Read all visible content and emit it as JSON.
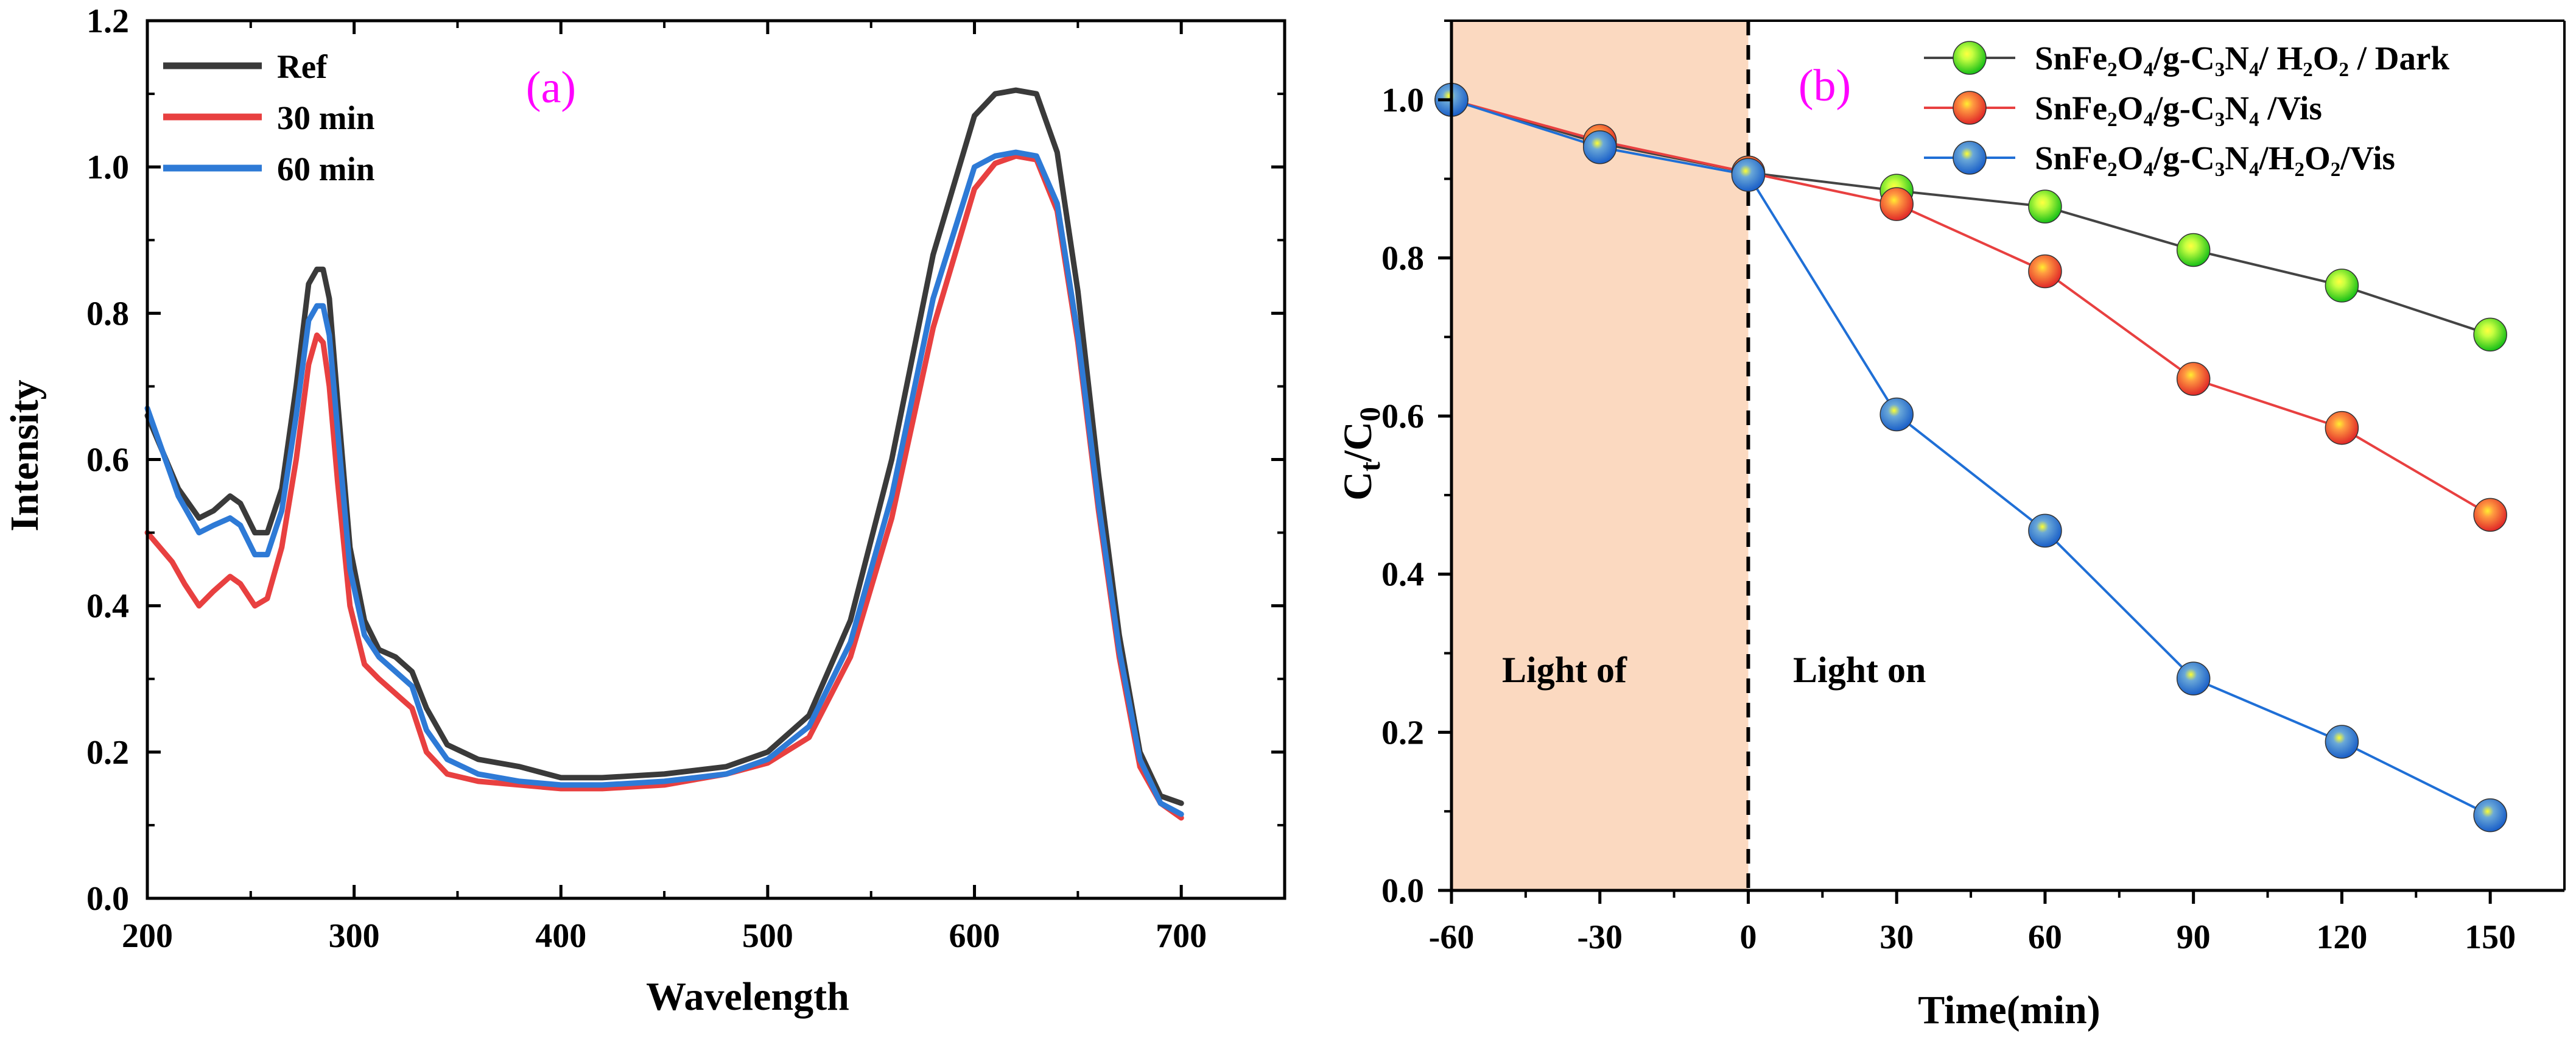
{
  "chart_data": [
    {
      "id": "a",
      "type": "line",
      "panel_label": "(a)",
      "xlabel": "Wavelength",
      "ylabel": "Intensity",
      "xlim": [
        200,
        750
      ],
      "ylim": [
        0.0,
        1.2
      ],
      "xticks": [
        "200",
        "300",
        "400",
        "500",
        "600",
        "700"
      ],
      "yticks": [
        "0.0",
        "0.2",
        "0.4",
        "0.6",
        "0.8",
        "1.0",
        "1.2"
      ],
      "legend_position": "top-left",
      "series": [
        {
          "name": "Ref",
          "color": "#3a3a3a",
          "x": [
            200,
            215,
            225,
            232,
            240,
            245,
            252,
            258,
            265,
            272,
            278,
            282,
            285,
            288,
            292,
            298,
            305,
            312,
            320,
            328,
            335,
            345,
            360,
            380,
            400,
            420,
            450,
            480,
            500,
            520,
            540,
            560,
            580,
            600,
            610,
            620,
            630,
            640,
            650,
            660,
            670,
            680,
            690,
            700
          ],
          "y": [
            0.66,
            0.56,
            0.52,
            0.53,
            0.55,
            0.54,
            0.5,
            0.5,
            0.56,
            0.7,
            0.84,
            0.86,
            0.86,
            0.82,
            0.68,
            0.48,
            0.38,
            0.34,
            0.33,
            0.31,
            0.26,
            0.21,
            0.19,
            0.18,
            0.165,
            0.165,
            0.17,
            0.18,
            0.2,
            0.25,
            0.38,
            0.6,
            0.88,
            1.07,
            1.1,
            1.105,
            1.1,
            1.02,
            0.83,
            0.58,
            0.36,
            0.2,
            0.14,
            0.13
          ]
        },
        {
          "name": "30 min",
          "color": "#e84040",
          "x": [
            200,
            212,
            218,
            225,
            232,
            240,
            245,
            252,
            258,
            265,
            272,
            278,
            282,
            285,
            288,
            292,
            298,
            305,
            312,
            320,
            328,
            335,
            345,
            360,
            380,
            400,
            420,
            450,
            480,
            500,
            520,
            540,
            560,
            580,
            600,
            610,
            620,
            630,
            640,
            650,
            660,
            670,
            680,
            690,
            700
          ],
          "y": [
            0.5,
            0.46,
            0.43,
            0.4,
            0.42,
            0.44,
            0.43,
            0.4,
            0.41,
            0.48,
            0.6,
            0.73,
            0.77,
            0.76,
            0.7,
            0.57,
            0.4,
            0.32,
            0.3,
            0.28,
            0.26,
            0.2,
            0.17,
            0.16,
            0.155,
            0.15,
            0.15,
            0.155,
            0.17,
            0.185,
            0.22,
            0.33,
            0.52,
            0.78,
            0.97,
            1.005,
            1.015,
            1.01,
            0.94,
            0.76,
            0.53,
            0.33,
            0.18,
            0.13,
            0.11
          ]
        },
        {
          "name": "60 min",
          "color": "#2e7ad6",
          "x": [
            200,
            215,
            225,
            232,
            240,
            245,
            252,
            258,
            265,
            272,
            278,
            282,
            285,
            288,
            292,
            298,
            305,
            312,
            320,
            328,
            335,
            345,
            360,
            380,
            400,
            420,
            450,
            480,
            500,
            520,
            540,
            560,
            580,
            600,
            610,
            620,
            630,
            640,
            650,
            660,
            670,
            680,
            690,
            700
          ],
          "y": [
            0.67,
            0.55,
            0.5,
            0.51,
            0.52,
            0.51,
            0.47,
            0.47,
            0.53,
            0.66,
            0.79,
            0.81,
            0.81,
            0.77,
            0.64,
            0.45,
            0.36,
            0.33,
            0.31,
            0.29,
            0.23,
            0.19,
            0.17,
            0.16,
            0.155,
            0.155,
            0.16,
            0.17,
            0.19,
            0.235,
            0.35,
            0.55,
            0.82,
            1.0,
            1.015,
            1.02,
            1.015,
            0.95,
            0.77,
            0.54,
            0.34,
            0.19,
            0.13,
            0.115
          ]
        }
      ]
    },
    {
      "id": "b",
      "type": "line",
      "panel_label": "(b)",
      "xlabel": "Time(min)",
      "ylabel_main": "C",
      "ylabel_sub1": "t",
      "ylabel_mid": "/C",
      "ylabel_sub2": "0",
      "xlim": [
        -60,
        165
      ],
      "ylim": [
        0.0,
        1.1
      ],
      "xticks": [
        -60,
        -30,
        0,
        30,
        60,
        90,
        120,
        150
      ],
      "yticks": [
        "0.0",
        "0.2",
        "0.4",
        "0.6",
        "0.8",
        "1.0"
      ],
      "shaded_region": {
        "from": -60,
        "to": 0,
        "color": "#fbd9c0"
      },
      "divider_x": 0,
      "region_labels": {
        "left": "Light of",
        "right": "Light on"
      },
      "legend_position": "top-right",
      "series": [
        {
          "name": "SnFe₂O₄/g-C₃N₄/ H₂O₂ / Dark",
          "color": "#22dd22",
          "line_color": "#444444",
          "x": [
            -60,
            -30,
            0,
            30,
            60,
            90,
            120,
            150
          ],
          "y": [
            1.0,
            0.945,
            0.908,
            0.885,
            0.865,
            0.81,
            0.765,
            0.703
          ]
        },
        {
          "name": "SnFe₂O₄/g-C₃N₄ /Vis",
          "color": "#ee3b3b",
          "line_color": "#e84040",
          "x": [
            -60,
            -30,
            0,
            30,
            60,
            90,
            120,
            150
          ],
          "y": [
            1.0,
            0.948,
            0.908,
            0.868,
            0.783,
            0.647,
            0.585,
            0.475
          ]
        },
        {
          "name": "SnFe₂O₄/g-C₃N₄/H₂O₂/Vis",
          "color": "#1f6fd6",
          "line_color": "#1f6fd6",
          "x": [
            -60,
            -30,
            0,
            30,
            60,
            90,
            120,
            150
          ],
          "y": [
            1.0,
            0.94,
            0.905,
            0.602,
            0.455,
            0.268,
            0.188,
            0.095
          ]
        }
      ]
    }
  ]
}
